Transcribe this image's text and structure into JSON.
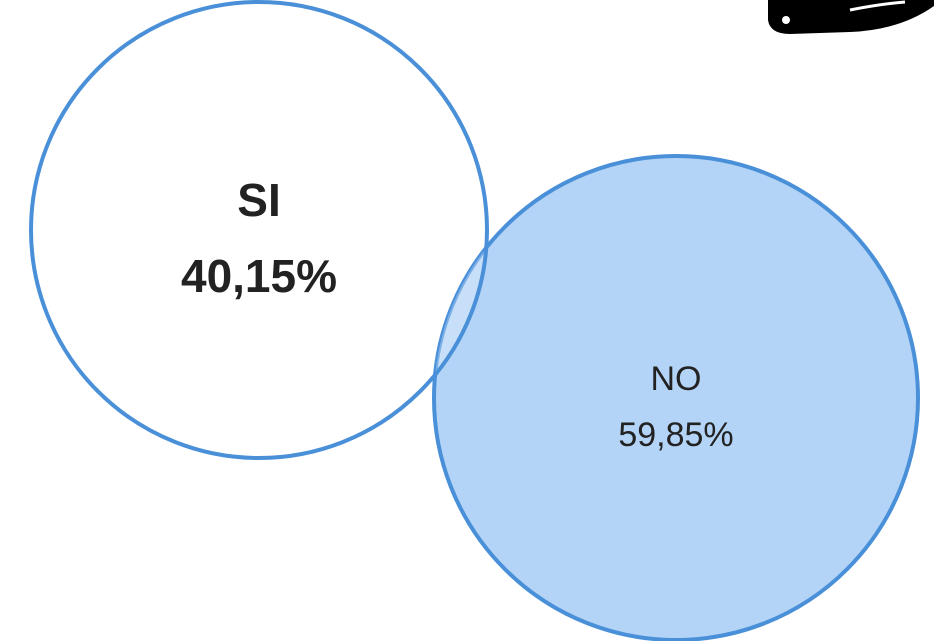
{
  "diagram": {
    "sets": [
      {
        "id": "si",
        "label": "SI",
        "value": "40,15%",
        "share": 40.15,
        "fill": "#ffffff",
        "stroke": "#4a90d9"
      },
      {
        "id": "no",
        "label": "NO",
        "value": "59,85%",
        "share": 59.85,
        "fill": "#b3d4f7",
        "stroke": "#4a90d9"
      }
    ],
    "overlap_fill": "#c7dff8"
  }
}
